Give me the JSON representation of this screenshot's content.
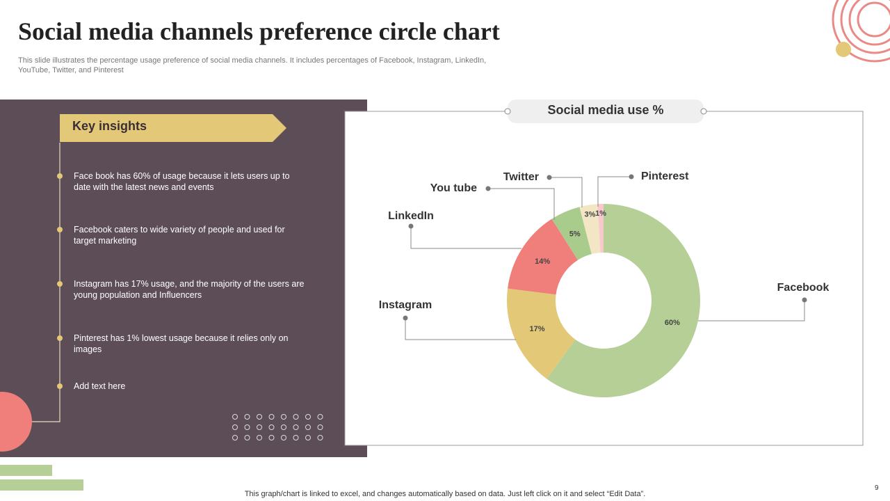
{
  "title": "Social media channels preference circle chart",
  "description": "This slide illustrates the percentage usage preference of social media channels. It includes percentages of Facebook, Instagram, LinkedIn, YouTube, Twitter, and Pinterest",
  "insights": {
    "heading": "Key insights",
    "items": [
      "Face book has 60% of usage because it lets users up to date with the latest news and events",
      "Facebook caters to wide variety of people and used for target marketing",
      "Instagram has 17% usage, and the majority of the users are young population and Influencers",
      "Pinterest has 1% lowest usage because it relies only on images",
      "Add text here"
    ]
  },
  "footer": "This graph/chart is linked to excel, and changes automatically based on data. Just left click on it and select “Edit Data”.",
  "page_number": "9",
  "chart_data": {
    "type": "donut",
    "title": "Social media use %",
    "categories": [
      "Facebook",
      "Instagram",
      "LinkedIn",
      "You tube",
      "Twitter",
      "Pinterest"
    ],
    "values": [
      60,
      17,
      14,
      5,
      3,
      1
    ],
    "value_labels": [
      "60%",
      "17%",
      "14%",
      "5%",
      "3%",
      "1%"
    ],
    "colors": [
      "#b5cf96",
      "#e3c877",
      "#f07e7a",
      "#a9cc8c",
      "#f3e6c4",
      "#f8c8cc"
    ]
  }
}
